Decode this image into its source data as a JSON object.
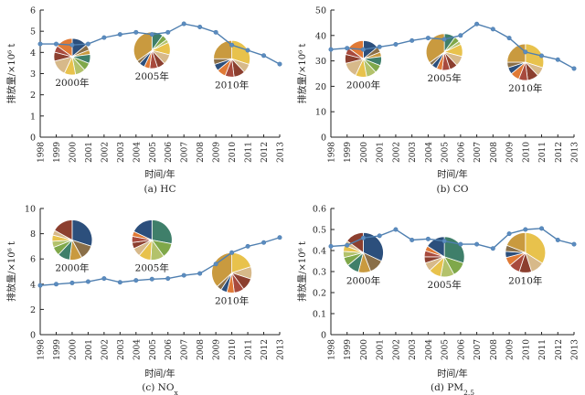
{
  "chart_data": [
    {
      "type": "line",
      "panel_id": "hc",
      "caption": "(a)  HC",
      "xlabel": "时间/年",
      "ylabel": "排放量/×10⁶ t",
      "x": [
        1998,
        1999,
        2000,
        2001,
        2002,
        2003,
        2004,
        2005,
        2006,
        2007,
        2008,
        2009,
        2010,
        2011,
        2012,
        2013
      ],
      "x_tick_labels": [
        "1998",
        "1999",
        "2000",
        "2001",
        "2002",
        "2003",
        "2004",
        "2005",
        "2006",
        "2007",
        "2008",
        "2009",
        "2010",
        "2011",
        "2012",
        "2013"
      ],
      "y_tick_labels": [
        "0",
        "1",
        "2",
        "3",
        "4",
        "5",
        "6"
      ],
      "ylim": [
        0,
        6
      ],
      "yticks": [
        0,
        1,
        2,
        3,
        4,
        5,
        6
      ],
      "values": [
        4.4,
        4.4,
        4.35,
        4.4,
        4.7,
        4.85,
        4.95,
        4.85,
        4.95,
        5.35,
        5.2,
        4.95,
        4.35,
        4.1,
        3.85,
        3.45
      ],
      "pies": [
        {
          "label": "2000年",
          "x": 2000,
          "y": 3.8,
          "slices": [
            0.14,
            0.05,
            0.04,
            0.08,
            0.07,
            0.09,
            0.1,
            0.14,
            0.08,
            0.06,
            0.15
          ]
        },
        {
          "label": "2005年",
          "x": 2005,
          "y": 4.1,
          "slices": [
            0.1,
            0.05,
            0.03,
            0.11,
            0.09,
            0.07,
            0.07,
            0.05,
            0.05,
            0.03,
            0.35
          ]
        },
        {
          "label": "2010年",
          "x": 2010,
          "y": 3.7,
          "slices": [
            0.3,
            0.08,
            0.1,
            0.08,
            0.08,
            0.06,
            0.05,
            0.25
          ]
        }
      ]
    },
    {
      "type": "line",
      "panel_id": "co",
      "caption": "(b)  CO",
      "xlabel": "时间/年",
      "ylabel": "排放量/×10⁶ t",
      "x": [
        1998,
        1999,
        2000,
        2001,
        2002,
        2003,
        2004,
        2005,
        2006,
        2007,
        2008,
        2009,
        2010,
        2011,
        2012,
        2013
      ],
      "x_tick_labels": [
        "1998",
        "1999",
        "2000",
        "2001",
        "2002",
        "2003",
        "2004",
        "2005",
        "2006",
        "2007",
        "2008",
        "2009",
        "2010",
        "2011",
        "2012",
        "2013"
      ],
      "y_tick_labels": [
        "0",
        "10",
        "20",
        "30",
        "40",
        "50"
      ],
      "ylim": [
        0,
        50
      ],
      "yticks": [
        0,
        10,
        20,
        30,
        40,
        50
      ],
      "values": [
        34.5,
        35,
        34.5,
        35.5,
        36.5,
        38,
        39,
        38.5,
        40,
        44.5,
        42.5,
        39,
        33.5,
        32,
        30.5,
        27
      ],
      "pies": [
        {
          "label": "2000年",
          "x": 2000,
          "y": 30.8,
          "slices": [
            0.14,
            0.05,
            0.04,
            0.08,
            0.07,
            0.09,
            0.1,
            0.14,
            0.08,
            0.06,
            0.15
          ]
        },
        {
          "label": "2005年",
          "x": 2005,
          "y": 33.5,
          "slices": [
            0.1,
            0.05,
            0.03,
            0.11,
            0.09,
            0.07,
            0.07,
            0.05,
            0.05,
            0.03,
            0.35
          ]
        },
        {
          "label": "2010年",
          "x": 2010,
          "y": 29.5,
          "slices": [
            0.3,
            0.08,
            0.1,
            0.08,
            0.08,
            0.06,
            0.05,
            0.25
          ]
        }
      ]
    },
    {
      "type": "line",
      "panel_id": "nox",
      "caption": "(c)  NO",
      "caption_sub": "x",
      "xlabel": "时间/年",
      "ylabel": "排放量/×10⁶ t",
      "x": [
        1998,
        1999,
        2000,
        2001,
        2002,
        2003,
        2004,
        2005,
        2006,
        2007,
        2008,
        2009,
        2010,
        2011,
        2012,
        2013
      ],
      "x_tick_labels": [
        "1998",
        "1999",
        "2000",
        "2001",
        "2002",
        "2003",
        "2004",
        "2005",
        "2006",
        "2007",
        "2008",
        "2009",
        "2010",
        "2011",
        "2012",
        "2013"
      ],
      "y_tick_labels": [
        "0",
        "2",
        "4",
        "6",
        "8",
        "10"
      ],
      "ylim": [
        0,
        10
      ],
      "yticks": [
        0,
        2,
        4,
        6,
        8,
        10
      ],
      "values": [
        3.9,
        4.0,
        4.1,
        4.2,
        4.45,
        4.15,
        4.3,
        4.4,
        4.45,
        4.7,
        4.85,
        5.6,
        6.5,
        7.0,
        7.3,
        7.7
      ],
      "pies": [
        {
          "label": "2000年",
          "x": 2000,
          "y": 7.5,
          "slices": [
            0.3,
            0.12,
            0.1,
            0.1,
            0.07,
            0.05,
            0.05,
            0.04,
            0.17
          ]
        },
        {
          "label": "2005年",
          "x": 2005,
          "y": 7.5,
          "slices": [
            0.28,
            0.12,
            0.11,
            0.1,
            0.07,
            0.05,
            0.05,
            0.04,
            0.18
          ]
        },
        {
          "label": "2010年",
          "x": 2010,
          "y": 4.9,
          "slices": [
            0.2,
            0.1,
            0.1,
            0.08,
            0.06,
            0.05,
            0.04,
            0.37
          ]
        }
      ]
    },
    {
      "type": "line",
      "panel_id": "pm25",
      "caption": "(d)  PM",
      "caption_sub": "2.5",
      "xlabel": "时间/年",
      "ylabel": "排放量/×10⁶ t",
      "x": [
        1998,
        1999,
        2000,
        2001,
        2002,
        2003,
        2004,
        2005,
        2006,
        2007,
        2008,
        2009,
        2010,
        2011,
        2012,
        2013
      ],
      "x_tick_labels": [
        "1998",
        "1999",
        "2000",
        "2001",
        "2002",
        "2003",
        "2004",
        "2005",
        "2006",
        "2007",
        "2008",
        "2009",
        "2010",
        "2011",
        "2012",
        "2013"
      ],
      "y_tick_labels": [
        "0",
        "0.1",
        "0.2",
        "0.3",
        "0.4",
        "0.5",
        "0.6"
      ],
      "ylim": [
        0,
        0.6
      ],
      "yticks": [
        0,
        0.1,
        0.2,
        0.3,
        0.4,
        0.5,
        0.6
      ],
      "values": [
        0.42,
        0.425,
        0.46,
        0.47,
        0.5,
        0.45,
        0.455,
        0.445,
        0.43,
        0.43,
        0.41,
        0.48,
        0.5,
        0.505,
        0.45,
        0.43
      ],
      "pies": [
        {
          "label": "2000年",
          "x": 2000,
          "y": 0.39,
          "slices": [
            0.32,
            0.12,
            0.1,
            0.1,
            0.07,
            0.05,
            0.05,
            0.04,
            0.15
          ]
        },
        {
          "label": "2005年",
          "x": 2005,
          "y": 0.37,
          "slices": [
            0.3,
            0.12,
            0.11,
            0.1,
            0.07,
            0.05,
            0.05,
            0.04,
            0.16
          ]
        },
        {
          "label": "2010年",
          "x": 2010,
          "y": 0.39,
          "slices": [
            0.34,
            0.11,
            0.1,
            0.09,
            0.07,
            0.05,
            0.05,
            0.19
          ]
        }
      ]
    }
  ],
  "colors": {
    "line": "#4f7fb0",
    "marker_fill": "#5b8cc0",
    "axis": "#222222",
    "pie_palette": [
      "#2c4f7c",
      "#8a6f48",
      "#c99a3f",
      "#3f7f6a",
      "#7fa84a",
      "#b3c26b",
      "#e8c24c",
      "#d7b98a",
      "#8c3f2f",
      "#a84a3d",
      "#e07a36"
    ]
  }
}
